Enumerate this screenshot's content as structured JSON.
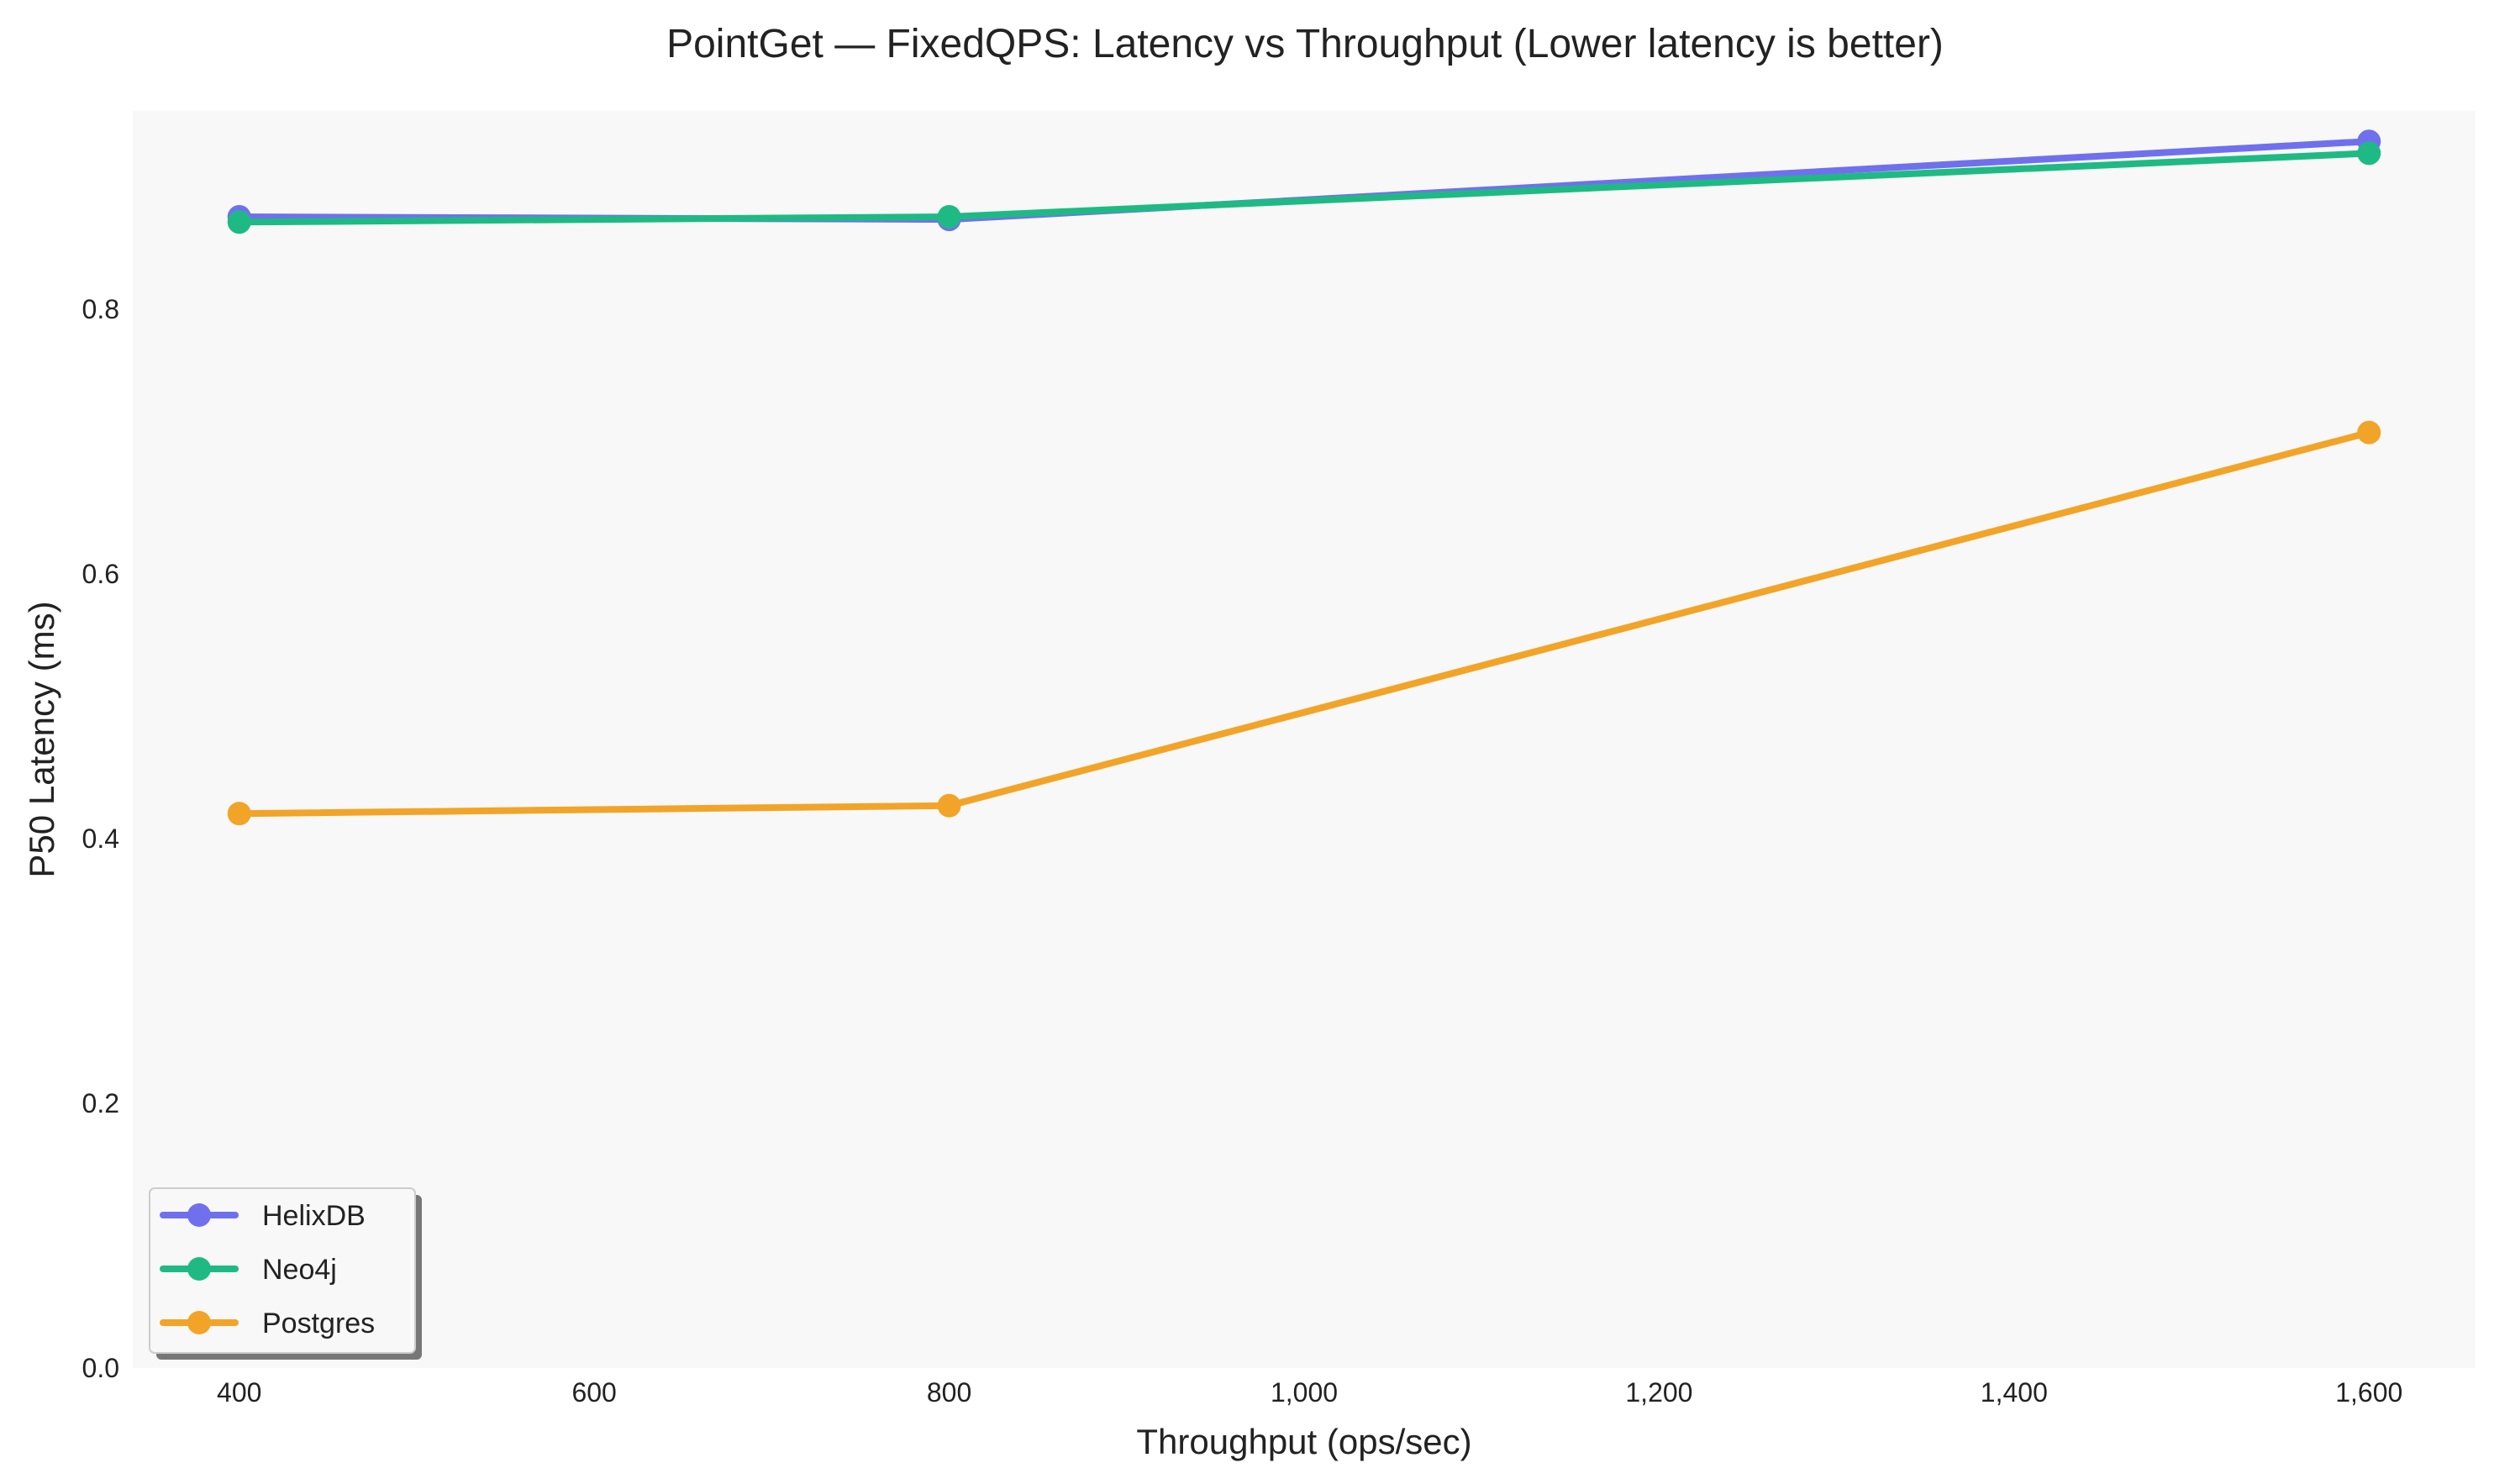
{
  "chart_data": {
    "type": "line",
    "title": "PointGet — FixedQPS: Latency vs Throughput (Lower latency is better)",
    "xlabel": "Throughput (ops/sec)",
    "ylabel": "P50 Latency (ms)",
    "x": [
      400,
      800,
      1600
    ],
    "xlim": [
      340,
      1660
    ],
    "ylim": [
      0,
      0.95
    ],
    "xticks": [
      400,
      600,
      800,
      1000,
      1200,
      1400,
      1600
    ],
    "xtick_labels": [
      "400",
      "600",
      "800",
      "1,000",
      "1,200",
      "1,400",
      "1,600"
    ],
    "yticks": [
      0,
      0.2,
      0.4,
      0.6,
      0.8
    ],
    "ytick_labels": [
      "0.0",
      "0.2",
      "0.4",
      "0.6",
      "0.8"
    ],
    "grid": false,
    "legend_position": "bottom-left",
    "series": [
      {
        "name": "HelixDB",
        "color": "#7070ee",
        "values": [
          0.87,
          0.868,
          0.927
        ]
      },
      {
        "name": "Neo4j",
        "color": "#1fba84",
        "values": [
          0.866,
          0.87,
          0.918
        ]
      },
      {
        "name": "Postgres",
        "color": "#f2a428",
        "values": [
          0.419,
          0.425,
          0.707
        ]
      }
    ]
  }
}
